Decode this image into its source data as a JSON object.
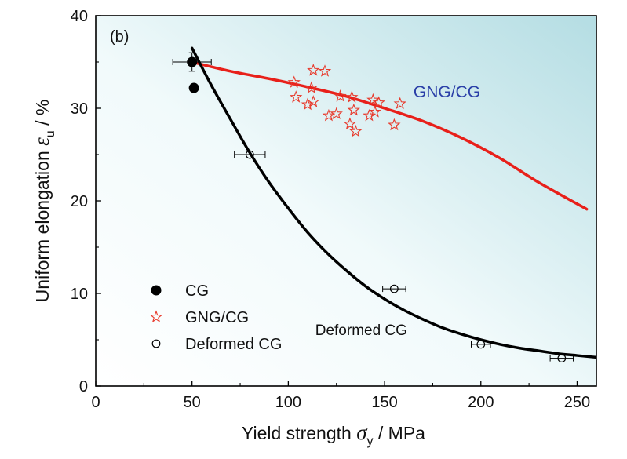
{
  "chart_data": {
    "type": "scatter",
    "panel_label": "(b)",
    "xlabel": "Yield strength σ_y / MPa",
    "xlabel_parts": {
      "main": "Yield strength ",
      "symbol": "σ",
      "sub": "y",
      "tail": " / MPa"
    },
    "ylabel": "Uniform elongation ε_u / %",
    "ylabel_parts": {
      "main": "Uniform elongation ",
      "symbol": "ε",
      "sub": "u",
      "tail": " / %"
    },
    "xlim": [
      0,
      260
    ],
    "ylim": [
      0,
      40
    ],
    "xticks": [
      0,
      50,
      100,
      150,
      200,
      250
    ],
    "yticks": [
      0,
      10,
      20,
      30,
      40
    ],
    "grid": false,
    "legend_position": "bottom-left",
    "legend": [
      {
        "name": "CG",
        "marker": "filled-circle",
        "color": "#000000"
      },
      {
        "name": "GNG/CG",
        "marker": "open-star",
        "color": "#e8392b"
      },
      {
        "name": "Deformed CG",
        "marker": "open-circle",
        "color": "#000000"
      }
    ],
    "annotations": [
      {
        "text": "GNG/CG",
        "x": 165,
        "y": 31.2,
        "color": "#2a3fa8"
      },
      {
        "text": "Deformed CG",
        "x": 114,
        "y": 5.5,
        "color": "#111111"
      }
    ],
    "series": [
      {
        "name": "CG",
        "marker": "filled-circle",
        "color": "#000000",
        "points": [
          {
            "x": 50,
            "y": 35.0,
            "xerr": 10,
            "yerr": 1.0
          },
          {
            "x": 51,
            "y": 32.2
          }
        ]
      },
      {
        "name": "GNG/CG",
        "marker": "open-star",
        "color": "#e8392b",
        "points": [
          {
            "x": 103,
            "y": 32.8
          },
          {
            "x": 104,
            "y": 31.2
          },
          {
            "x": 110,
            "y": 30.4
          },
          {
            "x": 112,
            "y": 32.2
          },
          {
            "x": 113,
            "y": 34.1
          },
          {
            "x": 113,
            "y": 30.7
          },
          {
            "x": 119,
            "y": 34.0
          },
          {
            "x": 121,
            "y": 29.2
          },
          {
            "x": 125,
            "y": 29.4
          },
          {
            "x": 127,
            "y": 31.3
          },
          {
            "x": 132,
            "y": 28.3
          },
          {
            "x": 133,
            "y": 31.2
          },
          {
            "x": 134,
            "y": 29.8
          },
          {
            "x": 135,
            "y": 27.5
          },
          {
            "x": 142,
            "y": 29.2
          },
          {
            "x": 144,
            "y": 30.9
          },
          {
            "x": 145,
            "y": 29.6
          },
          {
            "x": 147,
            "y": 30.6
          },
          {
            "x": 155,
            "y": 28.2
          },
          {
            "x": 158,
            "y": 30.5
          }
        ]
      },
      {
        "name": "Deformed CG",
        "marker": "open-circle",
        "color": "#000000",
        "points": [
          {
            "x": 80,
            "y": 25.0,
            "xerr": 8
          },
          {
            "x": 155,
            "y": 10.5,
            "xerr": 6
          },
          {
            "x": 200,
            "y": 4.5,
            "xerr": 5
          },
          {
            "x": 242,
            "y": 3.0,
            "xerr": 6
          }
        ]
      }
    ],
    "fit_lines": [
      {
        "name": "GNG/CG trend",
        "color": "#e8201a",
        "x": [
          50,
          70,
          90,
          110,
          130,
          150,
          170,
          190,
          210,
          230,
          255
        ],
        "y": [
          35.0,
          34.0,
          33.2,
          32.3,
          31.3,
          30.0,
          28.6,
          26.8,
          24.6,
          22.0,
          19.1
        ]
      },
      {
        "name": "Deformed CG trend",
        "color": "#000000",
        "x": [
          50,
          60,
          70,
          80,
          90,
          100,
          110,
          120,
          130,
          140,
          150,
          160,
          170,
          180,
          190,
          200,
          210,
          220,
          230,
          240,
          250,
          260
        ],
        "y": [
          36.5,
          32.5,
          28.8,
          25.2,
          22.0,
          19.2,
          16.6,
          14.4,
          12.5,
          10.8,
          9.4,
          8.2,
          7.2,
          6.3,
          5.6,
          5.0,
          4.5,
          4.1,
          3.8,
          3.5,
          3.3,
          3.1
        ]
      }
    ]
  }
}
